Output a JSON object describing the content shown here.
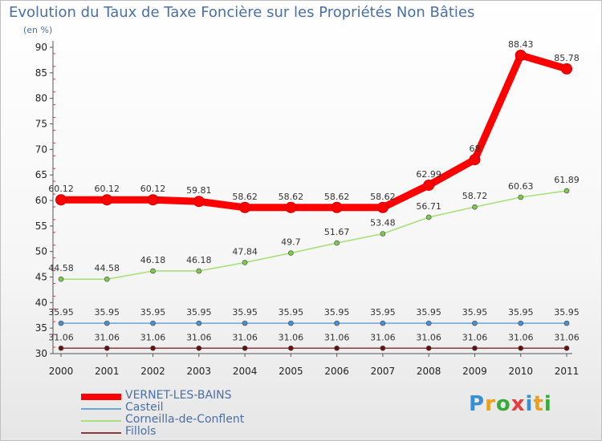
{
  "chart_data": {
    "type": "line",
    "title": "Evolution du Taux de Taxe Foncière sur les Propriétés Non Bâties",
    "ylabel": "(en %)",
    "xlabel": "",
    "categories": [
      "2000",
      "2001",
      "2002",
      "2003",
      "2004",
      "2005",
      "2006",
      "2007",
      "2008",
      "2009",
      "2010",
      "2011"
    ],
    "ylim": [
      30,
      90
    ],
    "yticks": [
      30,
      35,
      40,
      45,
      50,
      55,
      60,
      65,
      70,
      75,
      80,
      85,
      90
    ],
    "grid": false,
    "legend_position": "bottom-left",
    "series": [
      {
        "name": "VERNET-LES-BAINS",
        "color": "#ff0000",
        "marker_color": "#ff0000",
        "width": "thick",
        "values": [
          60.12,
          60.12,
          60.12,
          59.81,
          58.62,
          58.62,
          58.62,
          58.62,
          62.99,
          68,
          88.43,
          85.78
        ],
        "labels": [
          "60.12",
          "60.12",
          "60.12",
          "59.81",
          "58.62",
          "58.62",
          "58.62",
          "58.62",
          "62.99",
          "68",
          "88.43",
          "85.78"
        ]
      },
      {
        "name": "Casteil",
        "color": "#6aa5d8",
        "marker_color": "#4d8fcc",
        "width": "thin",
        "values": [
          35.95,
          35.95,
          35.95,
          35.95,
          35.95,
          35.95,
          35.95,
          35.95,
          35.95,
          35.95,
          35.95,
          35.95
        ],
        "labels": [
          "35.95",
          "35.95",
          "35.95",
          "35.95",
          "35.95",
          "35.95",
          "35.95",
          "35.95",
          "35.95",
          "35.95",
          "35.95",
          "35.95"
        ]
      },
      {
        "name": "Corneilla-de-Conflent",
        "color": "#a8e07a",
        "marker_color": "#7ec850",
        "width": "thin",
        "values": [
          44.58,
          44.58,
          46.18,
          46.18,
          47.84,
          49.7,
          51.67,
          53.48,
          56.71,
          58.72,
          60.63,
          61.89
        ],
        "labels": [
          "44.58",
          "44.58",
          "46.18",
          "46.18",
          "47.84",
          "49.7",
          "51.67",
          "53.48",
          "56.71",
          "58.72",
          "60.63",
          "61.89"
        ]
      },
      {
        "name": "Fillols",
        "color": "#8b3a3a",
        "marker_color": "#6b1010",
        "width": "thin",
        "values": [
          31.06,
          31.06,
          31.06,
          31.06,
          31.06,
          31.06,
          31.06,
          31.06,
          31.06,
          31.06,
          31.06,
          31.06
        ],
        "labels": [
          "31.06",
          "31.06",
          "31.06",
          "31.06",
          "31.06",
          "31.06",
          "31.06",
          "31.06",
          "31.06",
          "31.06",
          "31.06",
          "31.06"
        ]
      }
    ]
  },
  "logo": {
    "letters": [
      "P",
      "r",
      "o",
      "x",
      "i",
      "t",
      "i"
    ],
    "colors": [
      "#3a8fd0",
      "#e8a020",
      "#3aaa3a",
      "#e04040",
      "#3a8fd0",
      "#e8a020",
      "#3aaa3a"
    ]
  }
}
